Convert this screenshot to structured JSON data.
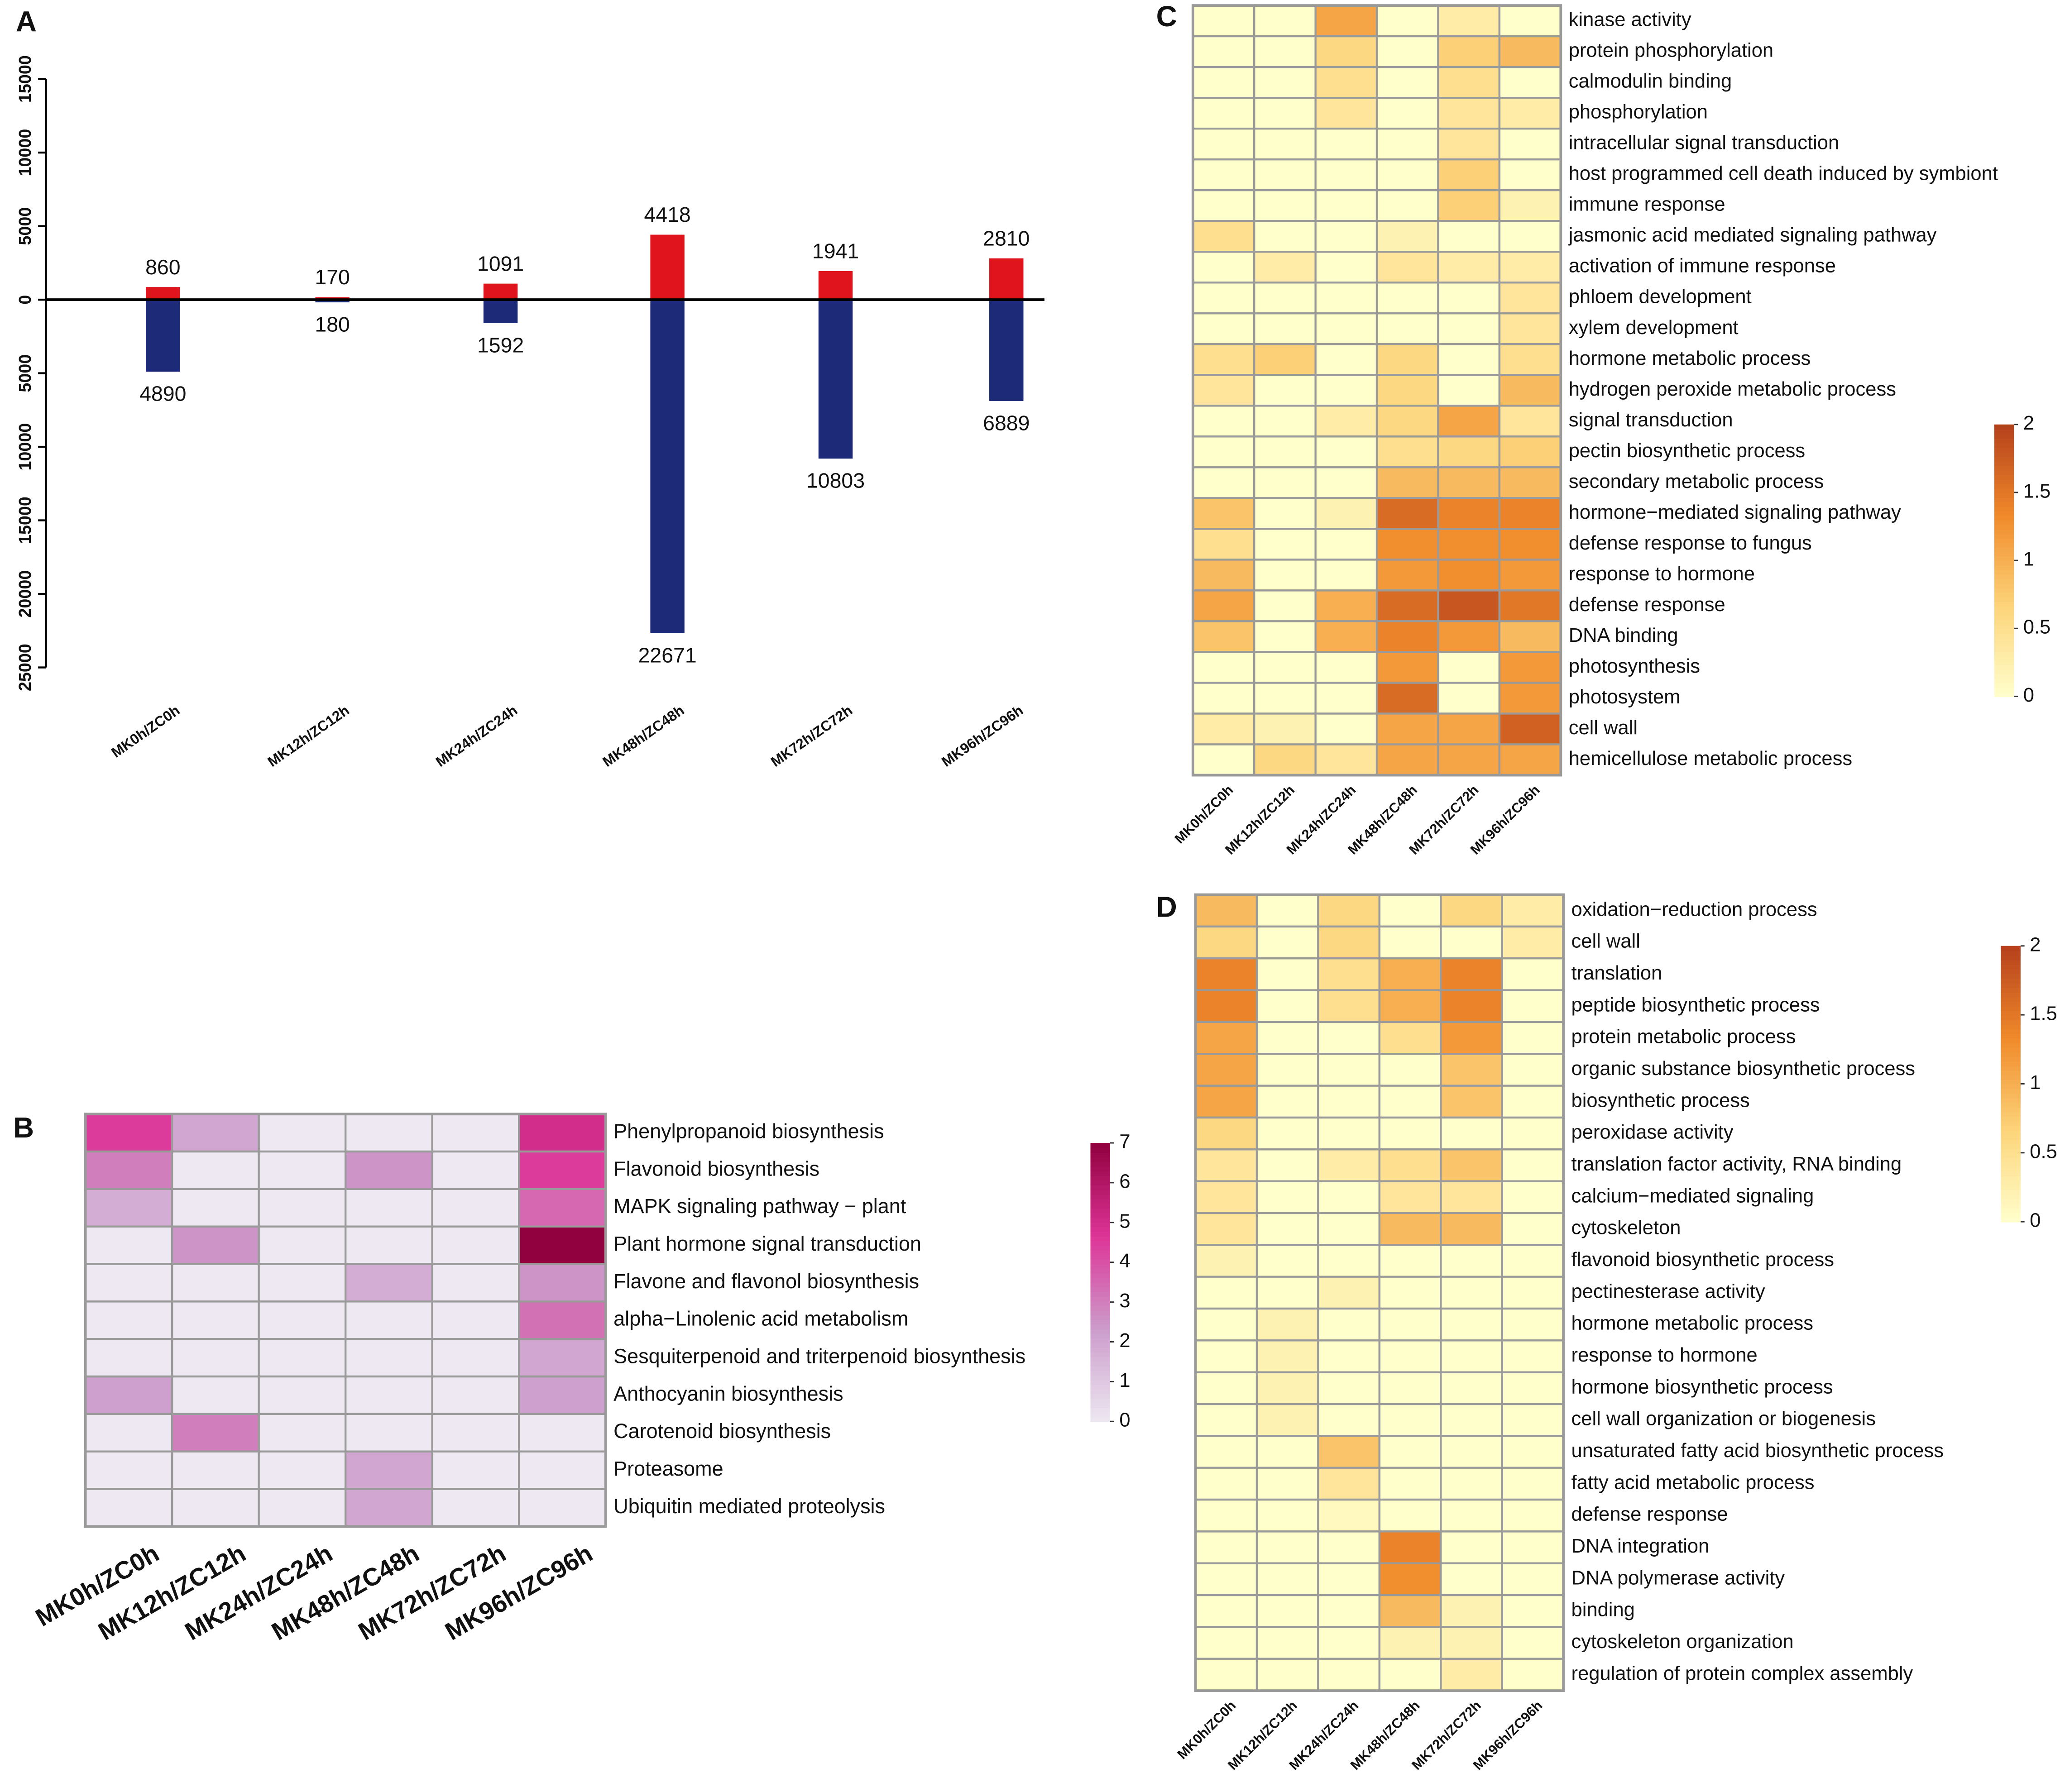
{
  "chart_data": [
    {
      "type": "bar",
      "panel": "A",
      "categories": [
        "MK0h/ZC0h",
        "MK12h/ZC12h",
        "MK24h/ZC24h",
        "MK48h/ZC48h",
        "MK72h/ZC72h",
        "MK96h/ZC96h"
      ],
      "series": [
        {
          "color": "#e0141c",
          "values": [
            860,
            170,
            1091,
            4418,
            1941,
            2810
          ]
        },
        {
          "color": "#1c2a78",
          "values": [
            -4890,
            -180,
            -1592,
            -22671,
            -10803,
            -6889
          ],
          "value_labels": [
            "4890",
            "180",
            "1592",
            "22671",
            "10803",
            "6889"
          ]
        }
      ],
      "ylim": [
        -25000,
        15000
      ],
      "yticks": [
        {
          "value": -25000,
          "label": "25000"
        },
        {
          "value": -20000,
          "label": "20000"
        },
        {
          "value": -15000,
          "label": "15000"
        },
        {
          "value": -10000,
          "label": "10000"
        },
        {
          "value": -5000,
          "label": "5000"
        },
        0,
        5000,
        10000,
        15000
      ]
    },
    {
      "type": "heatmap",
      "panel": "B",
      "columns": [
        "MK0h/ZC0h",
        "MK12h/ZC12h",
        "MK24h/ZC24h",
        "MK48h/ZC48h",
        "MK72h/ZC72h",
        "MK96h/ZC96h"
      ],
      "rows": [
        "Phenylpropanoid biosynthesis",
        "Flavonoid biosynthesis",
        "MAPK signaling pathway − plant",
        "Plant hormone signal transduction",
        "Flavone and flavonol biosynthesis",
        "alpha−Linolenic acid metabolism",
        "Sesquiterpenoid and triterpenoid biosynthesis",
        "Anthocyanin biosynthesis",
        "Carotenoid biosynthesis",
        "Proteasome",
        "Ubiquitin mediated proteolysis"
      ],
      "values": [
        [
          4.5,
          2,
          0,
          0,
          0,
          5
        ],
        [
          3,
          0,
          0,
          2.5,
          0,
          4.5
        ],
        [
          1.8,
          0,
          0,
          0,
          0,
          3.5
        ],
        [
          0,
          2.5,
          0,
          0,
          0,
          7
        ],
        [
          0,
          0,
          0,
          1.8,
          0,
          2.5
        ],
        [
          0,
          0,
          0,
          0,
          0,
          3.3
        ],
        [
          0,
          0,
          0,
          0,
          0,
          2
        ],
        [
          2.2,
          0,
          0,
          0,
          0,
          2.2
        ],
        [
          0,
          3,
          0,
          0,
          0,
          0
        ],
        [
          0,
          0,
          0,
          2,
          0,
          0
        ],
        [
          0,
          0,
          0,
          2,
          0,
          0
        ]
      ],
      "zlim": [
        0,
        7
      ],
      "zticks": [
        0,
        1,
        2,
        3,
        4,
        5,
        6,
        7
      ],
      "colors": [
        "#ede8f2",
        "#cc9ccb",
        "#dd3497",
        "#91003f"
      ]
    },
    {
      "type": "heatmap",
      "panel": "C",
      "columns": [
        "MK0h/ZC0h",
        "MK12h/ZC12h",
        "MK24h/ZC24h",
        "MK48h/ZC48h",
        "MK72h/ZC72h",
        "MK96h/ZC96h"
      ],
      "rows": [
        "kinase activity",
        "protein phosphorylation",
        "calmodulin binding",
        "phosphorylation",
        "intracellular signal transduction",
        "host programmed cell death induced by symbiont",
        "immune response",
        "jasmonic acid mediated signaling pathway",
        "activation of immune response",
        "phloem development",
        "xylem development",
        "hormone metabolic process",
        "hydrogen peroxide metabolic process",
        "signal transduction",
        "pectin biosynthetic process",
        "secondary metabolic process",
        "hormone−mediated signaling pathway",
        "defense response to fungus",
        "response to hormone",
        "defense response",
        "DNA binding",
        "photosynthesis",
        "photosystem",
        "cell wall",
        "hemicellulose metabolic process"
      ],
      "values": [
        [
          0,
          0,
          1.1,
          0,
          0.3,
          0
        ],
        [
          0,
          0,
          0.6,
          0,
          0.7,
          0.9
        ],
        [
          0,
          0,
          0.5,
          0,
          0.5,
          0
        ],
        [
          0,
          0,
          0.4,
          0,
          0.4,
          0.3
        ],
        [
          0,
          0,
          0,
          0,
          0.4,
          0
        ],
        [
          0,
          0,
          0,
          0,
          0.7,
          0
        ],
        [
          0,
          0,
          0,
          0,
          0.7,
          0.2
        ],
        [
          0.5,
          0,
          0,
          0.2,
          0,
          0
        ],
        [
          0,
          0.3,
          0,
          0.4,
          0.3,
          0.3
        ],
        [
          0,
          0,
          0,
          0,
          0,
          0.4
        ],
        [
          0,
          0,
          0,
          0,
          0,
          0.4
        ],
        [
          0.5,
          0.7,
          0,
          0.6,
          0,
          0.5
        ],
        [
          0.4,
          0,
          0,
          0.6,
          0,
          0.9
        ],
        [
          0,
          0,
          0.3,
          0.6,
          1.1,
          0.4
        ],
        [
          0,
          0,
          0,
          0.5,
          0.6,
          0.7
        ],
        [
          0,
          0,
          0,
          0.9,
          0.9,
          0.9
        ],
        [
          0.8,
          0,
          0.2,
          1.6,
          1.4,
          1.4
        ],
        [
          0.5,
          0,
          0,
          1.3,
          1.3,
          1.3
        ],
        [
          0.9,
          0,
          0,
          1.2,
          1.3,
          1.2
        ],
        [
          1.1,
          0,
          1,
          1.6,
          1.8,
          1.5
        ],
        [
          0.8,
          0,
          1,
          1.4,
          1.2,
          0.9
        ],
        [
          0,
          0,
          0,
          1.2,
          0,
          1.2
        ],
        [
          0,
          0,
          0,
          1.6,
          0,
          1.2
        ],
        [
          0.3,
          0.2,
          0,
          1.1,
          1.1,
          1.7
        ],
        [
          0,
          0.6,
          0.4,
          1.1,
          1.1,
          1.1
        ]
      ],
      "zlim": [
        0,
        2
      ],
      "zticks": [
        0,
        0.5,
        1,
        1.5,
        2
      ],
      "colors": [
        "#ffffcc",
        "#fdd47a",
        "#f08a2a",
        "#b5401c"
      ]
    },
    {
      "type": "heatmap",
      "panel": "D",
      "columns": [
        "MK0h/ZC0h",
        "MK12h/ZC12h",
        "MK24h/ZC24h",
        "MK48h/ZC48h",
        "MK72h/ZC72h",
        "MK96h/ZC96h"
      ],
      "rows": [
        "oxidation−reduction process",
        "cell wall",
        "translation",
        "peptide biosynthetic process",
        "protein metabolic process",
        "organic substance biosynthetic process",
        "biosynthetic process",
        "peroxidase activity",
        "translation factor activity, RNA binding",
        "calcium−mediated signaling",
        "cytoskeleton",
        "flavonoid biosynthetic process",
        "pectinesterase activity",
        "hormone metabolic process",
        "response to hormone",
        "hormone biosynthetic process",
        "cell wall organization or biogenesis",
        "unsaturated fatty acid biosynthetic process",
        "fatty acid metabolic process",
        "defense response",
        "DNA integration",
        "DNA polymerase activity",
        "binding",
        "cytoskeleton organization",
        "regulation of protein complex assembly"
      ],
      "values": [
        [
          0.9,
          0,
          0.6,
          0,
          0.6,
          0.3
        ],
        [
          0.6,
          0,
          0.6,
          0,
          0,
          0.3
        ],
        [
          1.4,
          0,
          0.5,
          1,
          1.4,
          0
        ],
        [
          1.4,
          0,
          0.5,
          1,
          1.4,
          0
        ],
        [
          1.1,
          0,
          0,
          0.5,
          1.2,
          0
        ],
        [
          1.1,
          0,
          0,
          0,
          0.8,
          0
        ],
        [
          1.1,
          0,
          0,
          0,
          0.8,
          0
        ],
        [
          0.6,
          0,
          0,
          0,
          0,
          0
        ],
        [
          0.4,
          0,
          0.3,
          0.5,
          0.8,
          0
        ],
        [
          0.4,
          0,
          0,
          0.4,
          0.4,
          0
        ],
        [
          0.4,
          0,
          0,
          0.9,
          0.9,
          0
        ],
        [
          0.2,
          0,
          0,
          0,
          0,
          0
        ],
        [
          0,
          0,
          0.2,
          0,
          0,
          0
        ],
        [
          0,
          0.2,
          0,
          0,
          0,
          0
        ],
        [
          0,
          0.2,
          0,
          0,
          0,
          0
        ],
        [
          0,
          0.2,
          0,
          0,
          0,
          0
        ],
        [
          0,
          0.2,
          0,
          0,
          0,
          0
        ],
        [
          0,
          0,
          0.8,
          0,
          0,
          0
        ],
        [
          0,
          0,
          0.4,
          0,
          0,
          0
        ],
        [
          0,
          0,
          0.1,
          0,
          0,
          0
        ],
        [
          0,
          0,
          0,
          1.4,
          0,
          0
        ],
        [
          0,
          0,
          0,
          1.3,
          0,
          0
        ],
        [
          0,
          0,
          0,
          0.9,
          0.2,
          0
        ],
        [
          0,
          0,
          0,
          0.2,
          0.2,
          0
        ],
        [
          0,
          0,
          0,
          0,
          0.3,
          0
        ]
      ],
      "zlim": [
        0,
        2
      ],
      "zticks": [
        0,
        0.5,
        1,
        1.5,
        2
      ],
      "colors": [
        "#ffffcc",
        "#fdd47a",
        "#f08a2a",
        "#b5401c"
      ]
    }
  ]
}
